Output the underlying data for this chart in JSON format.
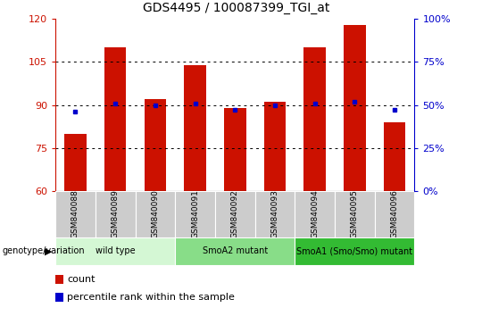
{
  "title": "GDS4495 / 100087399_TGI_at",
  "samples": [
    "GSM840088",
    "GSM840089",
    "GSM840090",
    "GSM840091",
    "GSM840092",
    "GSM840093",
    "GSM840094",
    "GSM840095",
    "GSM840096"
  ],
  "counts": [
    80,
    110,
    92,
    104,
    89,
    91,
    110,
    118,
    84
  ],
  "percentile": [
    46,
    51,
    50,
    51,
    47,
    50,
    51,
    52,
    47
  ],
  "ylim_left": [
    60,
    120
  ],
  "ylim_right": [
    0,
    100
  ],
  "yticks_left": [
    60,
    75,
    90,
    105,
    120
  ],
  "yticks_right": [
    0,
    25,
    50,
    75,
    100
  ],
  "groups": [
    {
      "label": "wild type",
      "start": 0,
      "end": 3,
      "color": "#d4f7d4"
    },
    {
      "label": "SmoA2 mutant",
      "start": 3,
      "end": 6,
      "color": "#88dd88"
    },
    {
      "label": "SmoA1 (Smo/Smo) mutant",
      "start": 6,
      "end": 9,
      "color": "#33bb33"
    }
  ],
  "bar_color": "#cc1100",
  "dot_color": "#0000cc",
  "bar_width": 0.55,
  "tick_color_left": "#cc1100",
  "tick_color_right": "#0000cc",
  "bg_tick": "#cccccc",
  "legend_items": [
    {
      "label": "count",
      "color": "#cc1100"
    },
    {
      "label": "percentile rank within the sample",
      "color": "#0000cc"
    }
  ]
}
